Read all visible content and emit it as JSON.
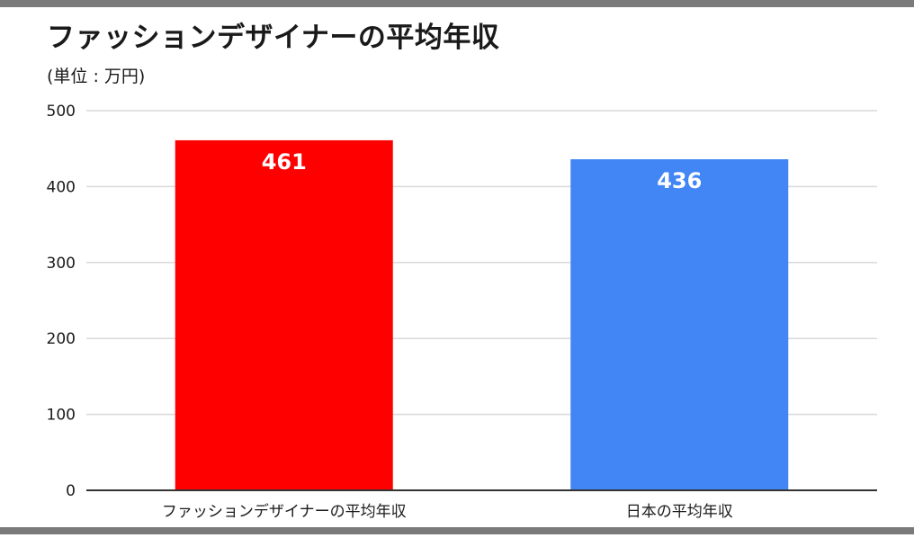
{
  "colors": {
    "frame": "#7a7a7a",
    "grid": "#d9d9d9",
    "axis": "#333333",
    "text": "#1a1a1a",
    "label_on_bar": "#ffffff"
  },
  "chart_data": {
    "type": "bar",
    "title": "ファッションデザイナーの平均年収",
    "subtitle": "(単位 : 万円)",
    "xlabel": "",
    "ylabel": "",
    "categories": [
      "ファッションデザイナーの平均年収",
      "日本の平均年収"
    ],
    "values": [
      461,
      436
    ],
    "bar_colors": [
      "#ff0000",
      "#4285f4"
    ],
    "data_labels": [
      "461",
      "436"
    ],
    "ylim": [
      0,
      500
    ],
    "yticks": [
      0,
      100,
      200,
      300,
      400,
      500
    ],
    "ytick_labels": [
      "0",
      "100",
      "200",
      "300",
      "400",
      "500"
    ],
    "grid": true,
    "legend": "none"
  }
}
